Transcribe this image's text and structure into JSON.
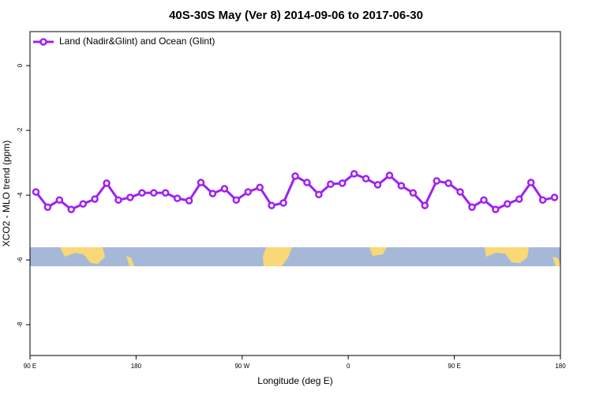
{
  "chart_data": {
    "type": "line",
    "title": "40S-30S May (Ver 8)   2014-09-06 to 2017-06-30",
    "x_label": "Longitude (deg E)",
    "y_label": "XCO2 - MLO trend (ppm)",
    "x": [
      95,
      105,
      115,
      125,
      135,
      145,
      155,
      165,
      175,
      185,
      195,
      205,
      215,
      225,
      235,
      245,
      255,
      265,
      275,
      285,
      295,
      305,
      315,
      325,
      335,
      345,
      355,
      365,
      375,
      385,
      395,
      405,
      415,
      425,
      435,
      445,
      455,
      465,
      475,
      485,
      495,
      505,
      515,
      525,
      535
    ],
    "series": [
      {
        "name": "Land (Nadir&Glint) and Ocean (Glint)",
        "color": "#a020f0",
        "values": [
          -3.9,
          -4.37,
          -4.15,
          -4.44,
          -4.27,
          -4.12,
          -3.63,
          -4.15,
          -4.07,
          -3.93,
          -3.93,
          -3.93,
          -4.1,
          -4.17,
          -3.61,
          -3.95,
          -3.8,
          -4.15,
          -3.9,
          -3.76,
          -4.32,
          -4.24,
          -3.41,
          -3.61,
          -3.98,
          -3.66,
          -3.63,
          -3.34,
          -3.49,
          -3.68,
          -3.39,
          -3.71,
          -3.93,
          -4.32,
          -3.56,
          -3.63,
          -3.9,
          -4.37,
          -4.15,
          -4.44,
          -4.27,
          -4.12,
          -3.61,
          -4.15,
          -4.07
        ]
      }
    ],
    "xlim": [
      90,
      540
    ],
    "xticks": [
      {
        "value": 90,
        "label": "90 E"
      },
      {
        "value": 180,
        "label": "180"
      },
      {
        "value": 270,
        "label": "90 W"
      },
      {
        "value": 360,
        "label": "0"
      },
      {
        "value": 450,
        "label": "90 E"
      },
      {
        "value": 540,
        "label": "180"
      }
    ],
    "ylim": [
      -8.95,
      1.05
    ],
    "yticks": [
      0,
      -2,
      -4,
      -6,
      -8
    ],
    "legend": "top-left"
  }
}
